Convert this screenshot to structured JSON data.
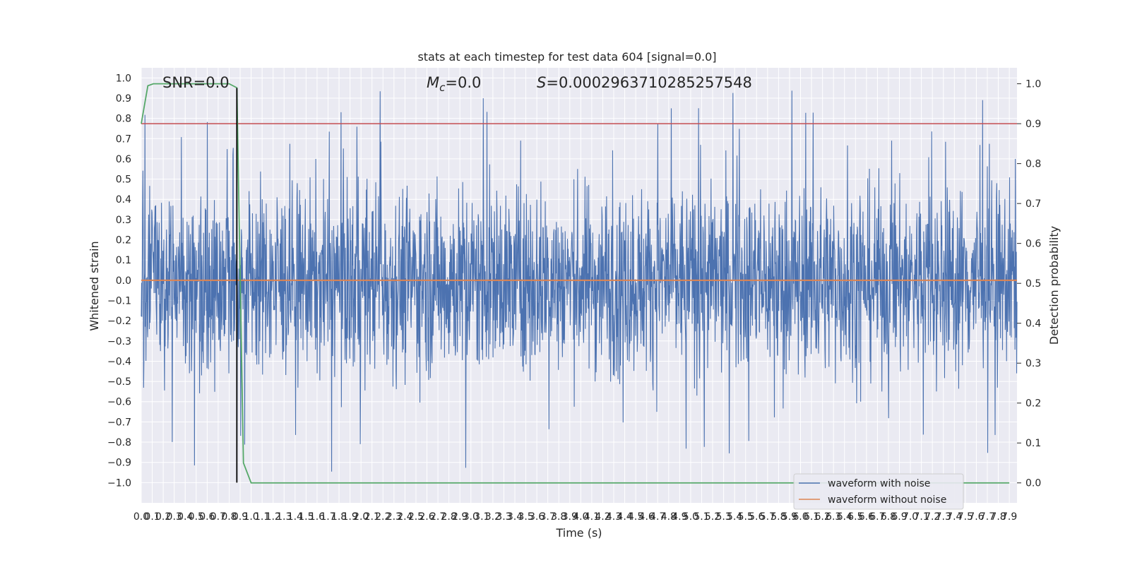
{
  "chart_data": {
    "type": "line",
    "title": "stats at each timestep for test data 604 [signal=0.0]",
    "xlabel": "Time (s)",
    "ylabel": "Whitened strain",
    "y2label": "Detection probability",
    "xlim": [
      0.0,
      7.97
    ],
    "ylim": [
      -1.1,
      1.05
    ],
    "y2lim": [
      -0.05,
      1.04
    ],
    "x_ticks": [
      "0.0",
      "0.1",
      "0.2",
      "0.3",
      "0.4",
      "0.5",
      "0.6",
      "0.7",
      "0.8",
      "0.9",
      "1.0",
      "1.1",
      "1.2",
      "1.3",
      "1.4",
      "1.5",
      "1.6",
      "1.7",
      "1.8",
      "1.9",
      "2.0",
      "2.1",
      "2.2",
      "2.3",
      "2.4",
      "2.5",
      "2.6",
      "2.7",
      "2.8",
      "2.9",
      "3.0",
      "3.1",
      "3.2",
      "3.3",
      "3.4",
      "3.5",
      "3.6",
      "3.7",
      "3.8",
      "3.9",
      "4.0",
      "4.1",
      "4.2",
      "4.3",
      "4.4",
      "4.5",
      "4.6",
      "4.7",
      "4.8",
      "4.9",
      "5.0",
      "5.1",
      "5.2",
      "5.3",
      "5.4",
      "5.5",
      "5.6",
      "5.7",
      "5.8",
      "5.9",
      "6.0",
      "6.1",
      "6.2",
      "6.3",
      "6.4",
      "6.5",
      "6.6",
      "6.7",
      "6.8",
      "6.9",
      "7.0",
      "7.1",
      "7.2",
      "7.3",
      "7.4",
      "7.5",
      "7.6",
      "7.7",
      "7.8",
      "7.9"
    ],
    "y_ticks": [
      "1.0",
      "0.9",
      "0.8",
      "0.7",
      "0.6",
      "0.5",
      "0.4",
      "0.3",
      "0.2",
      "0.1",
      "0.0",
      "−0.1",
      "−0.2",
      "−0.3",
      "−0.4",
      "−0.5",
      "−0.6",
      "−0.7",
      "−0.8",
      "−0.9",
      "−1.0"
    ],
    "y2_ticks": [
      "1.0",
      "0.9",
      "0.8",
      "0.7",
      "0.6",
      "0.5",
      "0.4",
      "0.3",
      "0.2",
      "0.1",
      "0.0"
    ],
    "annotations": {
      "snr": "SNR=0.0",
      "mc_symbol": "M",
      "mc_sub": "c",
      "mc_value": "=0.0",
      "s_symbol": "S",
      "s_value": "=0.0002963710285257548"
    },
    "series": [
      {
        "name": "waveform with noise",
        "color": "#4c72b0",
        "axis": "left",
        "description_values": "dense noise, amplitude roughly ±0.4 with spikes to ±0.95"
      },
      {
        "name": "waveform without noise",
        "color": "#dd8452",
        "axis": "left",
        "values_constant": 0.0
      },
      {
        "color": "#55a868",
        "axis": "right",
        "x": [
          0.0,
          0.06,
          0.11,
          0.3,
          0.6,
          0.8,
          0.87,
          0.93,
          1.0,
          1.5,
          3.0,
          5.0,
          7.0,
          7.9
        ],
        "values": [
          0.9,
          0.995,
          1.0,
          1.0,
          1.0,
          1.0,
          0.99,
          0.05,
          0.0,
          0.0,
          0.0,
          0.0,
          0.0,
          0.0
        ]
      }
    ],
    "threshold": {
      "axis": "right",
      "value": 0.9,
      "color": "#c44e52"
    },
    "vline": {
      "x": 0.87,
      "ymin": -1.0,
      "ymax": 0.95,
      "color": "#000000"
    },
    "legend": {
      "placement": "lower-right",
      "entries": [
        "waveform with noise",
        "waveform without noise"
      ]
    }
  }
}
